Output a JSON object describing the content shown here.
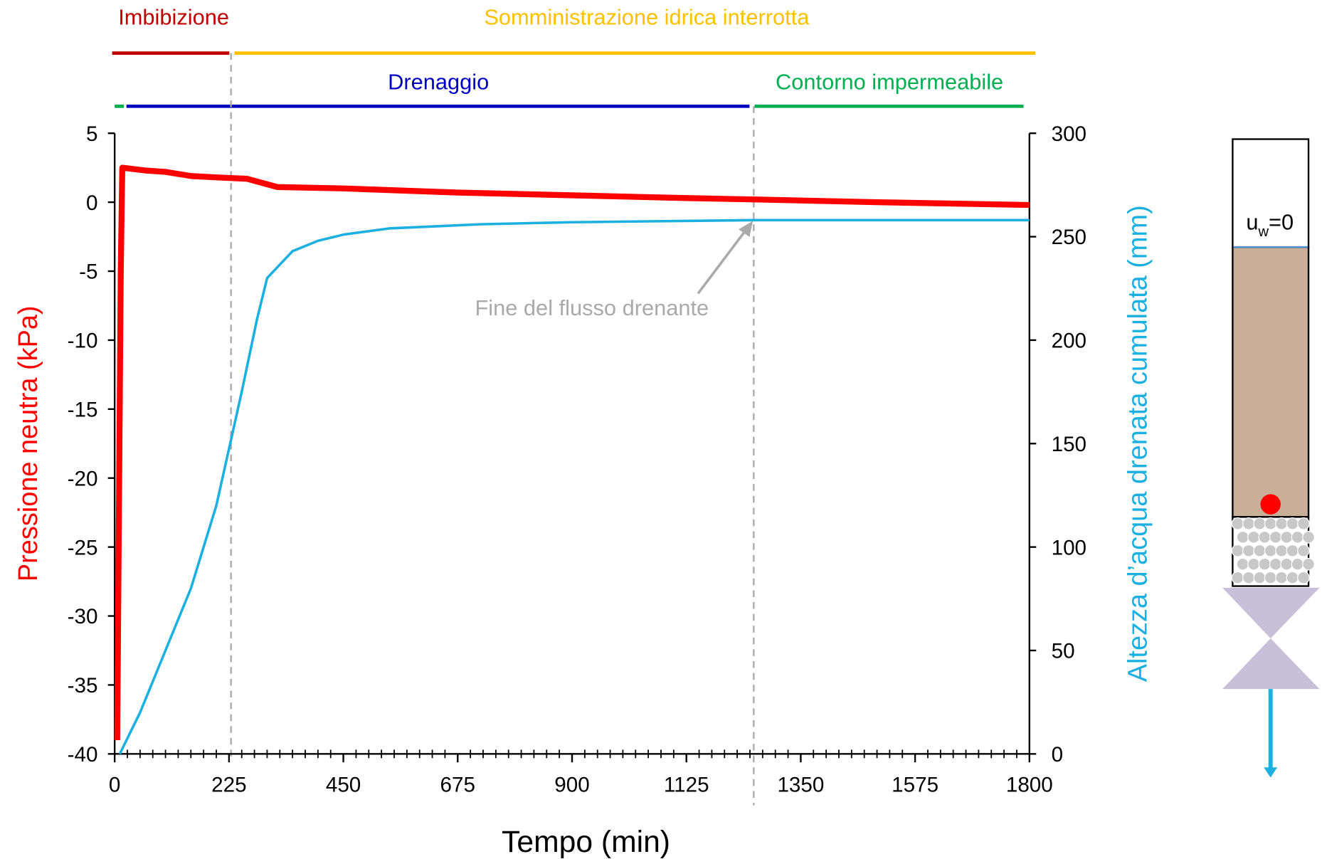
{
  "chart_data": {
    "type": "line",
    "xlabel": "Tempo (min)",
    "ylabel": "Pressione neutra (kPa)",
    "y2label": "Altezza d’acqua drenata cumulata (mm)",
    "xlim": [
      0,
      1800
    ],
    "xticks": [
      0,
      225,
      450,
      675,
      900,
      1125,
      1350,
      1575,
      1800
    ],
    "ylim": [
      -40,
      5
    ],
    "yticks": [
      -40,
      -35,
      -30,
      -25,
      -20,
      -15,
      -10,
      -5,
      0,
      5
    ],
    "y2lim": [
      0,
      300
    ],
    "y2ticks": [
      0,
      50,
      100,
      150,
      200,
      250,
      300
    ],
    "series": [
      {
        "color": "#ff0000",
        "x": [
          5,
          12,
          15,
          60,
          100,
          150,
          200,
          260,
          300,
          320,
          450,
          675,
          900,
          1125,
          1260,
          1500,
          1800
        ],
        "values": [
          -39,
          -5,
          2.5,
          2.3,
          2.2,
          1.9,
          1.8,
          1.7,
          1.3,
          1.1,
          1.0,
          0.7,
          0.5,
          0.3,
          0.2,
          0.0,
          -0.2
        ]
      },
      {
        "color": "#1cb0e0",
        "axis": "y2",
        "x": [
          10,
          50,
          100,
          150,
          200,
          250,
          280,
          300,
          350,
          400,
          450,
          540,
          720,
          900,
          1260,
          1800
        ],
        "values": [
          0,
          20,
          50,
          80,
          120,
          175,
          210,
          230,
          243,
          248,
          251,
          254,
          256,
          257,
          258,
          258
        ]
      }
    ],
    "annotations": [
      "Imbibizione",
      "Somministrazione idrica interrotta",
      "Drenaggio",
      "Contorno impermeabile",
      "Fine del flusso drenante"
    ]
  },
  "diagram": {
    "label": "u",
    "subscript": "w",
    "suffix": "=0"
  }
}
